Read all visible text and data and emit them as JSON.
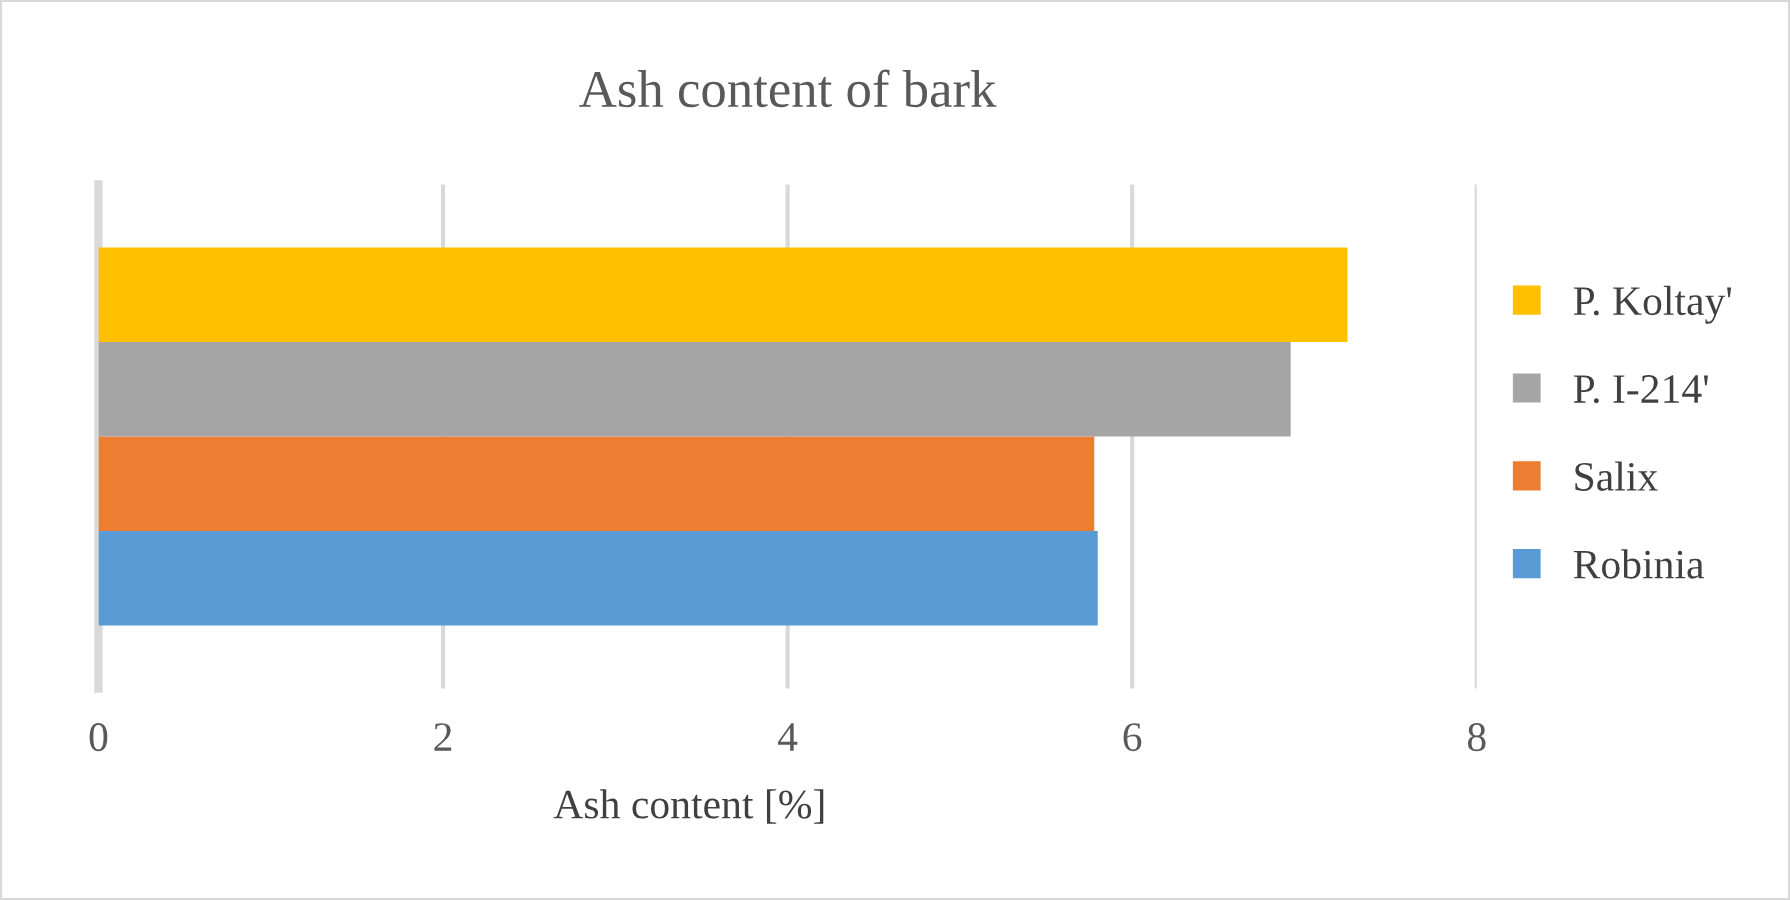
{
  "chart_data": {
    "type": "bar",
    "orientation": "horizontal",
    "title": "Ash content of bark",
    "xlabel": "Ash content [%]",
    "categories": [
      null
    ],
    "series": [
      {
        "name": "Robinia",
        "color": "#5b9bd5",
        "values": [
          5.8
        ]
      },
      {
        "name": "Salix",
        "color": "#ed7d31",
        "values": [
          5.78
        ]
      },
      {
        "name": "P. I-214'",
        "color": "#a5a5a5",
        "values": [
          6.92
        ]
      },
      {
        "name": "P. Koltay'",
        "color": "#ffc000",
        "values": [
          7.25
        ]
      }
    ],
    "xlim": [
      0,
      8
    ],
    "xticks": [
      0,
      2,
      4,
      6,
      8
    ],
    "grid": "x",
    "legend": "right"
  }
}
